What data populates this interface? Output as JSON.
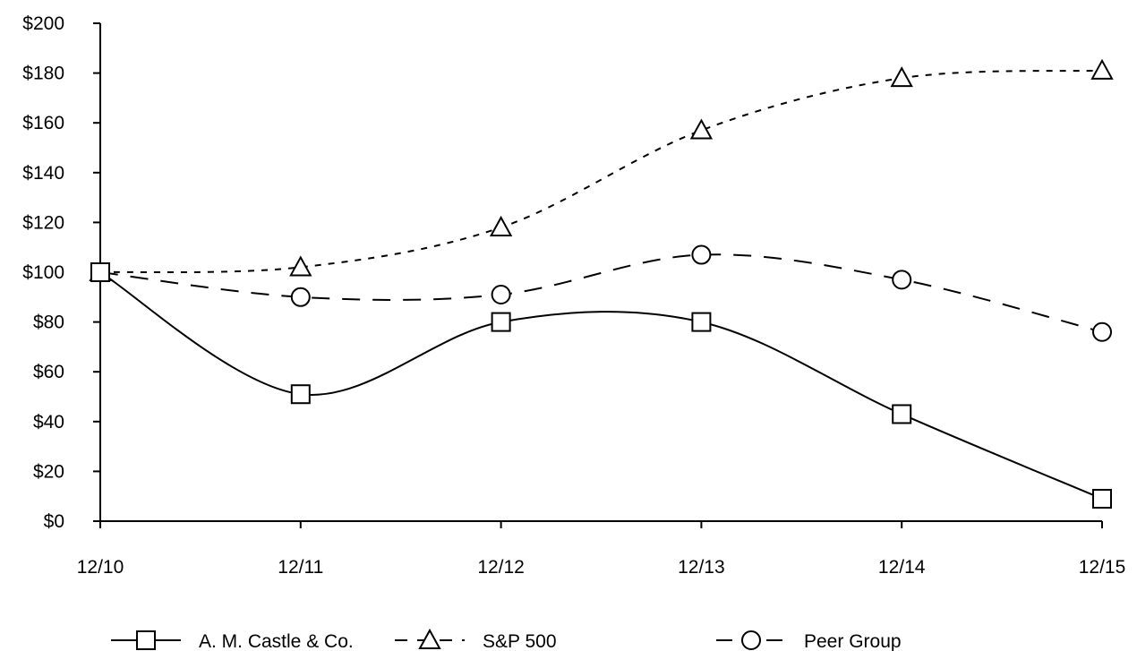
{
  "chart_data": {
    "type": "line",
    "x": [
      "12/10",
      "12/11",
      "12/12",
      "12/13",
      "12/14",
      "12/15"
    ],
    "ylim": [
      0,
      200
    ],
    "yticks": [
      0,
      20,
      40,
      60,
      80,
      100,
      120,
      140,
      160,
      180,
      200
    ],
    "ytick_labels": [
      "$0",
      "$20",
      "$40",
      "$60",
      "$80",
      "$100",
      "$120",
      "$140",
      "$160",
      "$180",
      "$200"
    ],
    "grid": false,
    "legend_position": "bottom",
    "series": [
      {
        "name": "A. M. Castle & Co.",
        "values": [
          100,
          51,
          80,
          80,
          43,
          9
        ],
        "marker": "square",
        "line_style": "solid",
        "color": "#000000"
      },
      {
        "name": "S&P 500",
        "values": [
          100,
          102,
          118,
          157,
          178,
          181
        ],
        "marker": "triangle",
        "line_style": "short-dash",
        "color": "#000000"
      },
      {
        "name": "Peer Group",
        "values": [
          100,
          90,
          91,
          107,
          97,
          76
        ],
        "marker": "circle",
        "line_style": "long-dash",
        "color": "#000000"
      }
    ]
  }
}
